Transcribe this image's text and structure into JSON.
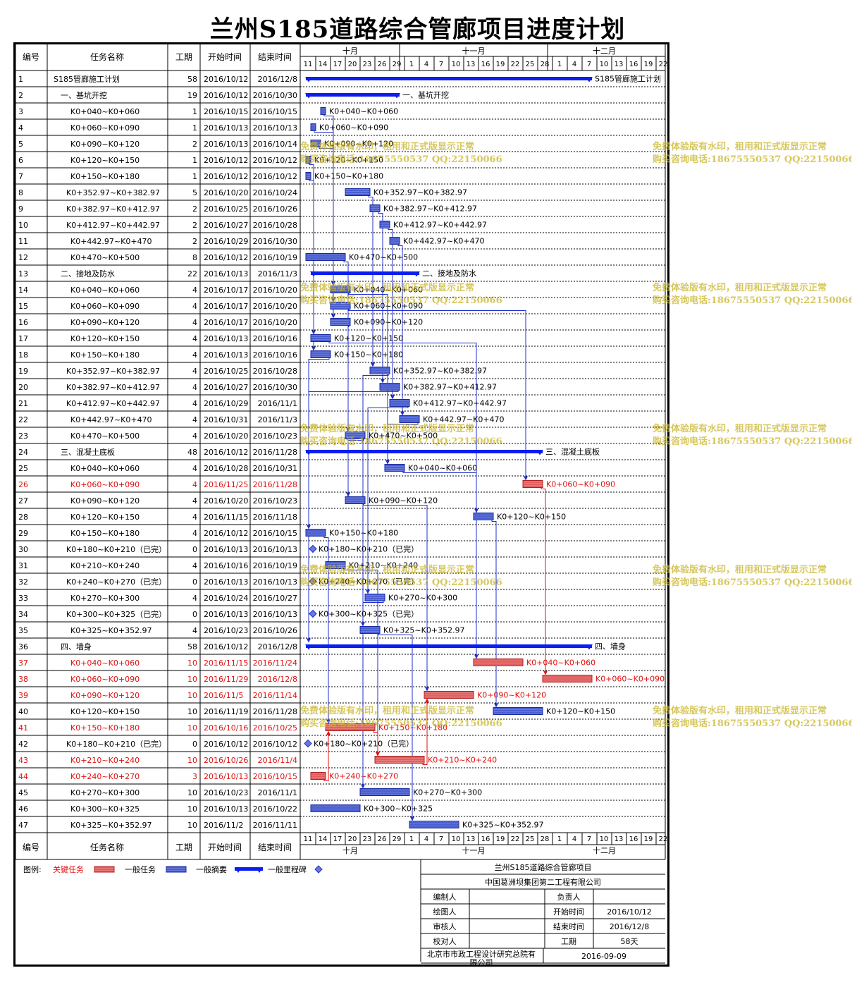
{
  "title": "兰州S185道路综合管廊项目进度计划",
  "headers": {
    "id": "编号",
    "name": "任务名称",
    "dur": "工期",
    "start": "开始时间",
    "end": "结束时间"
  },
  "timeline": {
    "months": [
      {
        "label": "十月"
      },
      {
        "label": "十一月"
      },
      {
        "label": "十二月"
      }
    ],
    "ticks": [
      "11",
      "14",
      "17",
      "20",
      "23",
      "26",
      "29",
      "1",
      "4",
      "7",
      "10",
      "13",
      "16",
      "19",
      "22",
      "25",
      "28",
      "1",
      "4",
      "7",
      "10",
      "13",
      "16",
      "19",
      "22"
    ]
  },
  "chart_data": {
    "type": "gantt",
    "title": "兰州S185道路综合管廊项目进度计划",
    "x_axis": {
      "start": "2016-10-11",
      "end": "2016-12-22",
      "months": [
        "十月",
        "十一月",
        "十二月"
      ]
    },
    "tasks": [
      {
        "id": "1",
        "name": "S185管廊施工计划",
        "dur": "58",
        "start": "2016/10/12",
        "end": "2016/12/8",
        "kind": "summary",
        "level": 0,
        "label": "S185管廊施工计划"
      },
      {
        "id": "2",
        "name": "一、基坑开挖",
        "dur": "19",
        "start": "2016/10/12",
        "end": "2016/10/30",
        "kind": "summary",
        "level": 1,
        "label": "一、基坑开挖"
      },
      {
        "id": "3",
        "name": "K0+040~K0+060",
        "dur": "1",
        "start": "2016/10/15",
        "end": "2016/10/15",
        "kind": "normal",
        "level": 2
      },
      {
        "id": "4",
        "name": "K0+060~K0+090",
        "dur": "1",
        "start": "2016/10/13",
        "end": "2016/10/13",
        "kind": "normal",
        "level": 2
      },
      {
        "id": "5",
        "name": "K0+090~K0+120",
        "dur": "2",
        "start": "2016/10/13",
        "end": "2016/10/14",
        "kind": "normal",
        "level": 2
      },
      {
        "id": "6",
        "name": "K0+120~K0+150",
        "dur": "1",
        "start": "2016/10/12",
        "end": "2016/10/12",
        "kind": "normal",
        "level": 2
      },
      {
        "id": "7",
        "name": "K0+150~K0+180",
        "dur": "1",
        "start": "2016/10/12",
        "end": "2016/10/12",
        "kind": "normal",
        "level": 2
      },
      {
        "id": "8",
        "name": "K0+352.97~K0+382.97",
        "dur": "5",
        "start": "2016/10/20",
        "end": "2016/10/24",
        "kind": "normal",
        "level": 2
      },
      {
        "id": "9",
        "name": "K0+382.97~K0+412.97",
        "dur": "2",
        "start": "2016/10/25",
        "end": "2016/10/26",
        "kind": "normal",
        "level": 2
      },
      {
        "id": "10",
        "name": "K0+412.97~K0+442.97",
        "dur": "2",
        "start": "2016/10/27",
        "end": "2016/10/28",
        "kind": "normal",
        "level": 2
      },
      {
        "id": "11",
        "name": "K0+442.97~K0+470",
        "dur": "2",
        "start": "2016/10/29",
        "end": "2016/10/30",
        "kind": "normal",
        "level": 2
      },
      {
        "id": "12",
        "name": "K0+470~K0+500",
        "dur": "8",
        "start": "2016/10/12",
        "end": "2016/10/19",
        "kind": "normal",
        "level": 2
      },
      {
        "id": "13",
        "name": "二、接地及防水",
        "dur": "22",
        "start": "2016/10/13",
        "end": "2016/11/3",
        "kind": "summary",
        "level": 1,
        "label": "二、接地及防水"
      },
      {
        "id": "14",
        "name": "K0+040~K0+060",
        "dur": "4",
        "start": "2016/10/17",
        "end": "2016/10/20",
        "kind": "normal",
        "level": 2
      },
      {
        "id": "15",
        "name": "K0+060~K0+090",
        "dur": "4",
        "start": "2016/10/17",
        "end": "2016/10/20",
        "kind": "normal",
        "level": 2
      },
      {
        "id": "16",
        "name": "K0+090~K0+120",
        "dur": "4",
        "start": "2016/10/17",
        "end": "2016/10/20",
        "kind": "normal",
        "level": 2
      },
      {
        "id": "17",
        "name": "K0+120~K0+150",
        "dur": "4",
        "start": "2016/10/13",
        "end": "2016/10/16",
        "kind": "normal",
        "level": 2
      },
      {
        "id": "18",
        "name": "K0+150~K0+180",
        "dur": "4",
        "start": "2016/10/13",
        "end": "2016/10/16",
        "kind": "normal",
        "level": 2
      },
      {
        "id": "19",
        "name": "K0+352.97~K0+382.97",
        "dur": "4",
        "start": "2016/10/25",
        "end": "2016/10/28",
        "kind": "normal",
        "level": 2
      },
      {
        "id": "20",
        "name": "K0+382.97~K0+412.97",
        "dur": "4",
        "start": "2016/10/27",
        "end": "2016/10/30",
        "kind": "normal",
        "level": 2
      },
      {
        "id": "21",
        "name": "K0+412.97~K0+442.97",
        "dur": "4",
        "start": "2016/10/29",
        "end": "2016/11/1",
        "kind": "normal",
        "level": 2
      },
      {
        "id": "22",
        "name": "K0+442.97~K0+470",
        "dur": "4",
        "start": "2016/10/31",
        "end": "2016/11/3",
        "kind": "normal",
        "level": 2
      },
      {
        "id": "23",
        "name": "K0+470~K0+500",
        "dur": "4",
        "start": "2016/10/20",
        "end": "2016/10/23",
        "kind": "normal",
        "level": 2
      },
      {
        "id": "24",
        "name": "三、混凝土底板",
        "dur": "48",
        "start": "2016/10/12",
        "end": "2016/11/28",
        "kind": "summary",
        "level": 1,
        "label": "三、混凝土底板"
      },
      {
        "id": "25",
        "name": "K0+040~K0+060",
        "dur": "4",
        "start": "2016/10/28",
        "end": "2016/10/31",
        "kind": "normal",
        "level": 2
      },
      {
        "id": "26",
        "name": "K0+060~K0+090",
        "dur": "4",
        "start": "2016/11/25",
        "end": "2016/11/28",
        "kind": "critical",
        "level": 2
      },
      {
        "id": "27",
        "name": "K0+090~K0+120",
        "dur": "4",
        "start": "2016/10/20",
        "end": "2016/10/23",
        "kind": "normal",
        "level": 2
      },
      {
        "id": "28",
        "name": "K0+120~K0+150",
        "dur": "4",
        "start": "2016/11/15",
        "end": "2016/11/18",
        "kind": "normal",
        "level": 2
      },
      {
        "id": "29",
        "name": "K0+150~K0+180",
        "dur": "4",
        "start": "2016/10/12",
        "end": "2016/10/15",
        "kind": "normal",
        "level": 2
      },
      {
        "id": "30",
        "name": "K0+180~K0+210（已完）",
        "dur": "0",
        "start": "2016/10/13",
        "end": "2016/10/13",
        "kind": "milestone",
        "level": 2
      },
      {
        "id": "31",
        "name": "K0+210~K0+240",
        "dur": "4",
        "start": "2016/10/16",
        "end": "2016/10/19",
        "kind": "normal",
        "level": 2
      },
      {
        "id": "32",
        "name": "K0+240~K0+270（已完）",
        "dur": "0",
        "start": "2016/10/13",
        "end": "2016/10/13",
        "kind": "milestone",
        "level": 2
      },
      {
        "id": "33",
        "name": "K0+270~K0+300",
        "dur": "4",
        "start": "2016/10/24",
        "end": "2016/10/27",
        "kind": "normal",
        "level": 2
      },
      {
        "id": "34",
        "name": "K0+300~K0+325（已完）",
        "dur": "0",
        "start": "2016/10/13",
        "end": "2016/10/13",
        "kind": "milestone",
        "level": 2
      },
      {
        "id": "35",
        "name": "K0+325~K0+352.97",
        "dur": "4",
        "start": "2016/10/23",
        "end": "2016/10/26",
        "kind": "normal",
        "level": 2
      },
      {
        "id": "36",
        "name": "四、墙身",
        "dur": "58",
        "start": "2016/10/12",
        "end": "2016/12/8",
        "kind": "summary",
        "level": 1,
        "label": "四、墙身"
      },
      {
        "id": "37",
        "name": "K0+040~K0+060",
        "dur": "10",
        "start": "2016/11/15",
        "end": "2016/11/24",
        "kind": "critical",
        "level": 2
      },
      {
        "id": "38",
        "name": "K0+060~K0+090",
        "dur": "10",
        "start": "2016/11/29",
        "end": "2016/12/8",
        "kind": "critical",
        "level": 2
      },
      {
        "id": "39",
        "name": "K0+090~K0+120",
        "dur": "10",
        "start": "2016/11/5",
        "end": "2016/11/14",
        "kind": "critical",
        "level": 2
      },
      {
        "id": "40",
        "name": "K0+120~K0+150",
        "dur": "10",
        "start": "2016/11/19",
        "end": "2016/11/28",
        "kind": "normal",
        "level": 2
      },
      {
        "id": "41",
        "name": "K0+150~K0+180",
        "dur": "10",
        "start": "2016/10/16",
        "end": "2016/10/25",
        "kind": "critical",
        "level": 2
      },
      {
        "id": "42",
        "name": "K0+180~K0+210（已完）",
        "dur": "0",
        "start": "2016/10/12",
        "end": "2016/10/12",
        "kind": "milestone",
        "level": 2
      },
      {
        "id": "43",
        "name": "K0+210~K0+240",
        "dur": "10",
        "start": "2016/10/26",
        "end": "2016/11/4",
        "kind": "critical",
        "level": 2
      },
      {
        "id": "44",
        "name": "K0+240~K0+270",
        "dur": "3",
        "start": "2016/10/13",
        "end": "2016/10/15",
        "kind": "critical",
        "level": 2
      },
      {
        "id": "45",
        "name": "K0+270~K0+300",
        "dur": "10",
        "start": "2016/10/23",
        "end": "2016/11/1",
        "kind": "normal",
        "level": 2
      },
      {
        "id": "46",
        "name": "K0+300~K0+325",
        "dur": "10",
        "start": "2016/10/13",
        "end": "2016/10/22",
        "kind": "normal",
        "level": 2
      },
      {
        "id": "47",
        "name": "K0+325~K0+352.97",
        "dur": "10",
        "start": "2016/11/2",
        "end": "2016/11/11",
        "kind": "normal",
        "level": 2
      }
    ],
    "links": [
      [
        3,
        14
      ],
      [
        4,
        15
      ],
      [
        5,
        16
      ],
      [
        6,
        17
      ],
      [
        7,
        18
      ],
      [
        8,
        19
      ],
      [
        9,
        20
      ],
      [
        10,
        21
      ],
      [
        11,
        22
      ],
      [
        12,
        23
      ],
      [
        14,
        25
      ],
      [
        15,
        26
      ],
      [
        16,
        27
      ],
      [
        17,
        28
      ],
      [
        18,
        29
      ],
      [
        19,
        35
      ],
      [
        20,
        36
      ],
      [
        21,
        33
      ],
      [
        22,
        25
      ],
      [
        23,
        27
      ],
      [
        25,
        37
      ],
      [
        26,
        38
      ],
      [
        27,
        39
      ],
      [
        28,
        40
      ],
      [
        29,
        41
      ],
      [
        31,
        43
      ],
      [
        33,
        45
      ],
      [
        35,
        47
      ],
      [
        41,
        43
      ],
      [
        43,
        39
      ],
      [
        44,
        41
      ]
    ],
    "colors": {
      "critical": "#e06060",
      "critical_text": "#e01010",
      "normal": "#4a5fd0",
      "summary": "#0a1ef0",
      "link": "#1f2fd0"
    }
  },
  "legend": {
    "label": "图例:",
    "critical": "关键任务",
    "normal": "一般任务",
    "summary": "一般摘要",
    "milestone": "一般里程碑"
  },
  "info": {
    "project": "兰州S185道路综合管廊项目",
    "company": "中国葛洲坝集团第二工程有限公司",
    "editor_label": "编制人",
    "responsible_label": "负责人",
    "drawer_label": "绘图人",
    "start_label": "开始时间",
    "start_value": "2016/10/12",
    "reviewer_label": "审核人",
    "end_label": "结束时间",
    "end_value": "2016/12/8",
    "checker_label": "校对人",
    "duration_label": "工期",
    "duration_value": "58天",
    "institute": "北京市市政工程设计研究总院有限公司",
    "date": "2016-09-09"
  },
  "watermark": {
    "line1": "免费体验版有水印，租用和正式版显示正常",
    "line2": "购买咨询电话:18675550537 QQ:22150066"
  }
}
